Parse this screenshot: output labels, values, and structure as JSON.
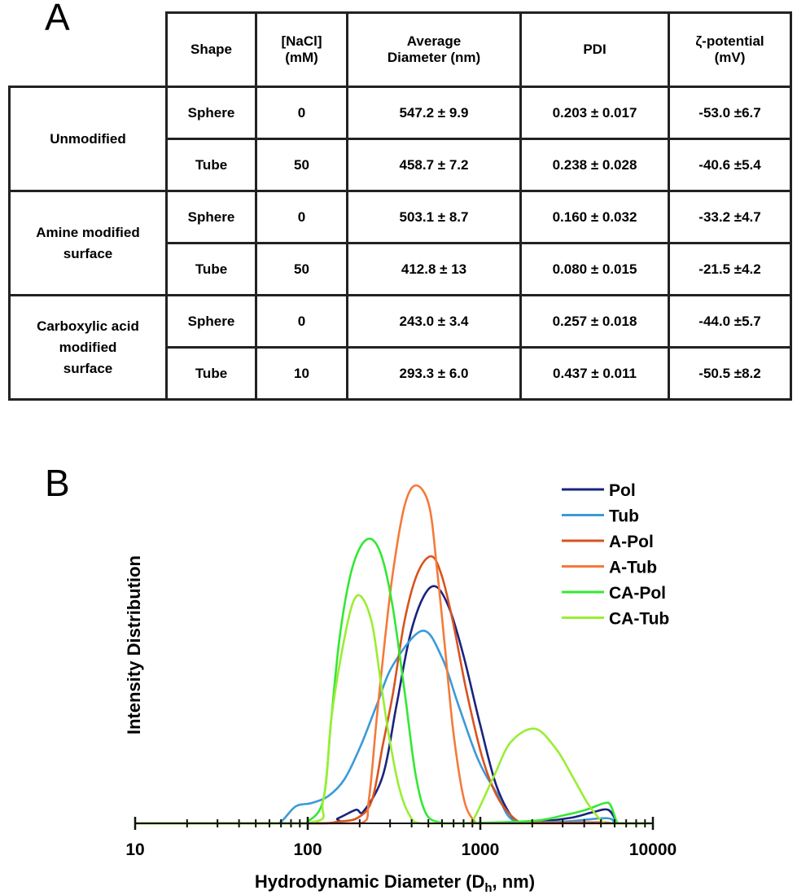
{
  "panel_a": {
    "letter": "A",
    "headers": [
      "Shape",
      "[NaCl]\n(mM)",
      "Average\nDiameter (nm)",
      "PDI",
      "ζ-potential\n(mV)"
    ],
    "groups": [
      {
        "label": "Unmodified",
        "rows": [
          {
            "shape": "Sphere",
            "nacl": "0",
            "diameter": "547.2 ± 9.9",
            "pdi": "0.203 ± 0.017",
            "zeta": "-53.0 ±6.7"
          },
          {
            "shape": "Tube",
            "nacl": "50",
            "diameter": "458.7 ± 7.2",
            "pdi": "0.238 ± 0.028",
            "zeta": "-40.6 ±5.4"
          }
        ]
      },
      {
        "label": "Amine modified surface",
        "rows": [
          {
            "shape": "Sphere",
            "nacl": "0",
            "diameter": "503.1 ± 8.7",
            "pdi": "0.160 ± 0.032",
            "zeta": "-33.2 ±4.7"
          },
          {
            "shape": "Tube",
            "nacl": "50",
            "diameter": "412.8 ± 13",
            "pdi": "0.080 ± 0.015",
            "zeta": "-21.5 ±4.2"
          }
        ]
      },
      {
        "label": "Carboxylic acid modified surface",
        "rows": [
          {
            "shape": "Sphere",
            "nacl": "0",
            "diameter": "243.0 ± 3.4",
            "pdi": "0.257 ± 0.018",
            "zeta": "-44.0 ±5.7"
          },
          {
            "shape": "Tube",
            "nacl": "10",
            "diameter": "293.3 ± 6.0",
            "pdi": "0.437 ± 0.011",
            "zeta": "-50.5 ±8.2"
          }
        ]
      }
    ]
  },
  "panel_b": {
    "letter": "B"
  },
  "chart_data": {
    "type": "line",
    "xlabel": "Hydrodynamic  Diameter (D",
    "xlabel_sub": "h",
    "xlabel_end": ", nm)",
    "ylabel": "Intensity  Distribution",
    "xscale": "log",
    "xlim": [
      10,
      10000
    ],
    "ylim": [
      0,
      105
    ],
    "xticks": [
      "10",
      "100",
      "1000",
      "10000"
    ],
    "grid": false,
    "legend": "top-right",
    "series": [
      {
        "name": "Pol",
        "color": "#1a237e",
        "points": [
          [
            120,
            0
          ],
          [
            150,
            1.5
          ],
          [
            190,
            4
          ],
          [
            211,
            3.6
          ],
          [
            272,
            14
          ],
          [
            327,
            35
          ],
          [
            389,
            55
          ],
          [
            468,
            67
          ],
          [
            556,
            70
          ],
          [
            668,
            63
          ],
          [
            805,
            49
          ],
          [
            1000,
            29
          ],
          [
            1242,
            11
          ],
          [
            1596,
            0.7
          ],
          [
            2000,
            0.3
          ],
          [
            3300,
            1.6
          ],
          [
            4420,
            3.2
          ],
          [
            5500,
            4
          ],
          [
            6170,
            0.5
          ],
          [
            6500,
            0
          ]
        ]
      },
      {
        "name": "Tub",
        "color": "#3a9ad9",
        "points": [
          [
            60,
            0
          ],
          [
            70,
            0.5
          ],
          [
            85,
            5
          ],
          [
            105,
            6
          ],
          [
            131,
            8
          ],
          [
            163,
            13
          ],
          [
            203,
            23
          ],
          [
            251,
            35
          ],
          [
            313,
            47
          ],
          [
            462,
            57
          ],
          [
            600,
            49
          ],
          [
            747,
            35
          ],
          [
            968,
            19
          ],
          [
            1242,
            9
          ],
          [
            1600,
            0.5
          ],
          [
            3000,
            0.5
          ],
          [
            5000,
            1.5
          ],
          [
            5800,
            1.2
          ],
          [
            6200,
            0
          ]
        ]
      },
      {
        "name": "A-Pol",
        "color": "#d9531e",
        "points": [
          [
            100,
            0
          ],
          [
            150,
            0.5
          ],
          [
            196,
            1.7
          ],
          [
            236,
            7
          ],
          [
            272,
            23
          ],
          [
            313,
            39
          ],
          [
            364,
            60
          ],
          [
            433,
            74
          ],
          [
            521,
            79
          ],
          [
            600,
            73
          ],
          [
            698,
            59
          ],
          [
            832,
            39
          ],
          [
            1033,
            19
          ],
          [
            1283,
            7
          ],
          [
            1660,
            0.5
          ],
          [
            2000,
            0.2
          ],
          [
            5000,
            0.3
          ],
          [
            6000,
            0
          ]
        ]
      },
      {
        "name": "A-Tub",
        "color": "#f47a3a",
        "points": [
          [
            100,
            0
          ],
          [
            203,
            0
          ],
          [
            226,
            7
          ],
          [
            251,
            31
          ],
          [
            281,
            55
          ],
          [
            313,
            75
          ],
          [
            364,
            94
          ],
          [
            424,
            100
          ],
          [
            505,
            94
          ],
          [
            562,
            75
          ],
          [
            627,
            51
          ],
          [
            698,
            27
          ],
          [
            805,
            7
          ],
          [
            927,
            0.5
          ],
          [
            1000,
            0
          ]
        ]
      },
      {
        "name": "CA-Pol",
        "color": "#33e833",
        "points": [
          [
            90,
            0
          ],
          [
            100,
            0.5
          ],
          [
            123,
            7
          ],
          [
            137,
            31
          ],
          [
            153,
            55
          ],
          [
            176,
            73
          ],
          [
            203,
            82
          ],
          [
            236,
            84
          ],
          [
            272,
            78
          ],
          [
            313,
            63
          ],
          [
            364,
            39
          ],
          [
            420,
            15
          ],
          [
            483,
            3
          ],
          [
            581,
            0.3
          ],
          [
            700,
            0
          ],
          [
            1980,
            0.7
          ],
          [
            3060,
            2.4
          ],
          [
            4100,
            4
          ],
          [
            5250,
            6
          ],
          [
            5690,
            5.3
          ],
          [
            6170,
            0.5
          ],
          [
            6500,
            0
          ]
        ]
      },
      {
        "name": "CA-Tub",
        "color": "#99ee33",
        "points": [
          [
            95,
            0
          ],
          [
            123,
            7
          ],
          [
            137,
            31
          ],
          [
            158,
            51
          ],
          [
            182,
            65
          ],
          [
            205,
            67
          ],
          [
            236,
            59
          ],
          [
            263,
            43
          ],
          [
            293,
            27
          ],
          [
            337,
            11
          ],
          [
            389,
            2.4
          ],
          [
            453,
            0
          ],
          [
            800,
            0
          ],
          [
            898,
            0.5
          ],
          [
            1200,
            14
          ],
          [
            1500,
            24
          ],
          [
            2070,
            28
          ],
          [
            2750,
            22
          ],
          [
            3410,
            14
          ],
          [
            4240,
            5.5
          ],
          [
            5100,
            0.5
          ],
          [
            5500,
            0
          ]
        ]
      }
    ]
  }
}
